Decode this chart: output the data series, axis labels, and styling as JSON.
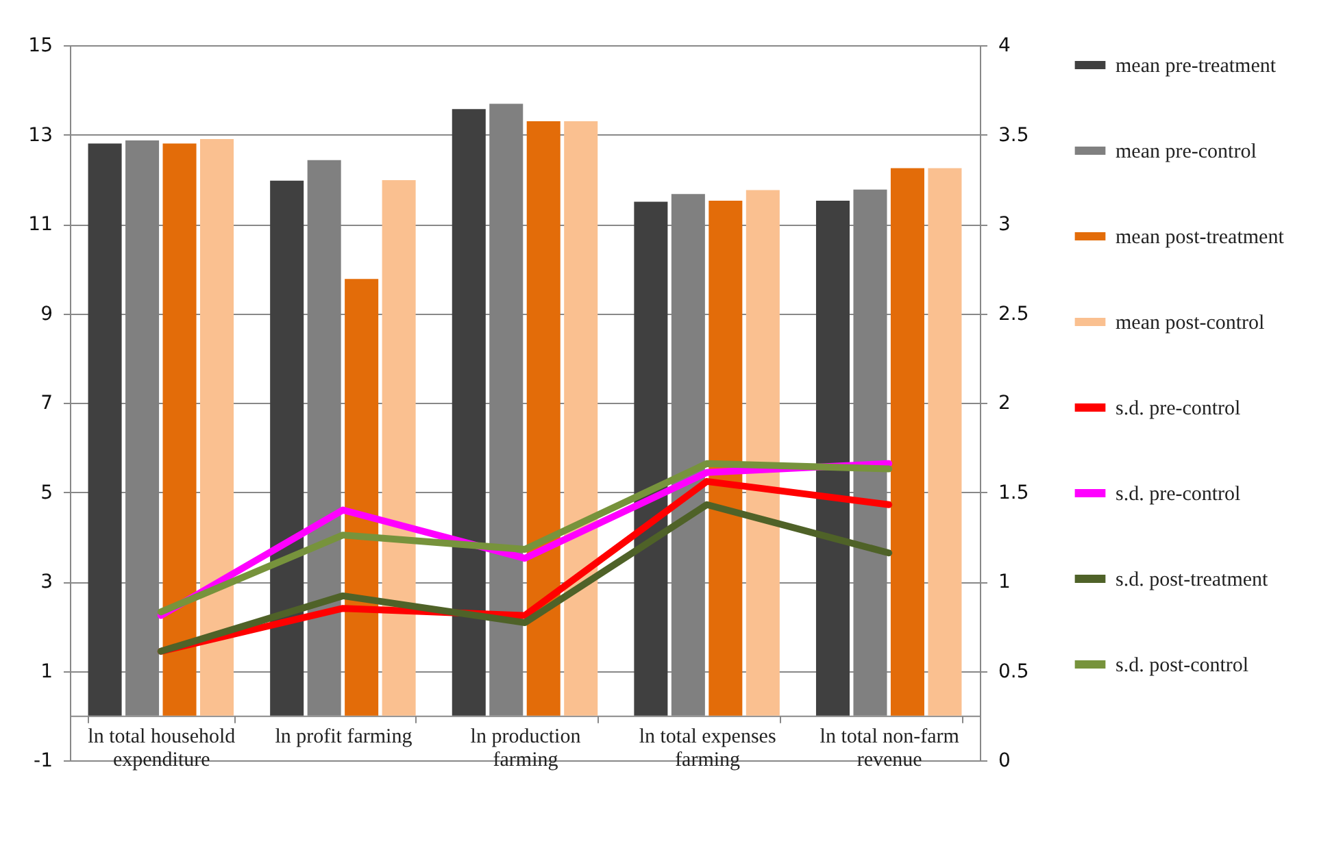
{
  "chart_data": {
    "type": "bar",
    "categories": [
      "ln total household expenditure",
      "ln profit farming",
      "ln production farming",
      "ln total expenses farming",
      "ln total non-farm revenue"
    ],
    "series": [
      {
        "name": "mean pre-treatment",
        "color": "#404040",
        "values": [
          12.8,
          11.97,
          13.57,
          11.5,
          11.52
        ]
      },
      {
        "name": "mean pre-control",
        "color": "#808080",
        "values": [
          12.87,
          12.43,
          13.69,
          11.67,
          11.77
        ]
      },
      {
        "name": "mean post-treatment",
        "color": "#e36c09",
        "values": [
          12.8,
          9.77,
          13.3,
          11.52,
          12.25
        ]
      },
      {
        "name": "mean post-control",
        "color": "#fac090",
        "values": [
          12.9,
          11.98,
          13.3,
          11.76,
          12.25
        ]
      },
      {
        "name": "s.d. pre-control",
        "color": "#ff0000",
        "type": "line",
        "axis": "y2",
        "values": [
          0.61,
          0.85,
          0.81,
          1.56,
          1.43
        ]
      },
      {
        "name": "s.d. pre-control",
        "color": "#ff00ff",
        "type": "line",
        "axis": "y2",
        "values": [
          0.81,
          1.4,
          1.13,
          1.61,
          1.66
        ]
      },
      {
        "name": "s.d. post-treatment",
        "color": "#4f6228",
        "type": "line",
        "axis": "y2",
        "values": [
          0.61,
          0.92,
          0.77,
          1.43,
          1.16
        ]
      },
      {
        "name": "s.d. post-control",
        "color": "#77933c",
        "type": "line",
        "axis": "y2",
        "values": [
          0.83,
          1.26,
          1.18,
          1.66,
          1.63
        ]
      }
    ],
    "ylim": [
      -1,
      15
    ],
    "yticks": [
      -1,
      1,
      3,
      5,
      7,
      9,
      11,
      13,
      15
    ],
    "y2lim": [
      0,
      4
    ],
    "y2ticks": [
      0,
      0.5,
      1,
      1.5,
      2,
      2.5,
      3,
      3.5,
      4
    ],
    "grid": "y",
    "legend": "right",
    "line_style": "solid"
  }
}
